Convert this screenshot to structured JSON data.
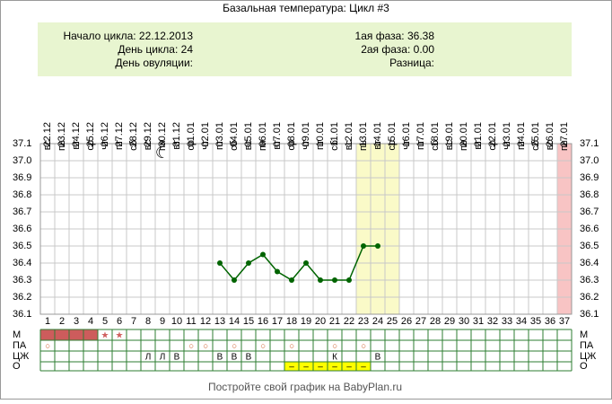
{
  "chart_data": {
    "type": "line",
    "title": "Базальная температура: Цикл #3",
    "info": {
      "left": [
        "Начало цикла: 22.12.2013",
        "День цикла: 24",
        "День овуляции:"
      ],
      "right": [
        "1ая фаза: 36.38",
        "2ая фаза: 0.00",
        "Разница:"
      ]
    },
    "categories": [
      "22.12",
      "23.12",
      "24.12",
      "25.12",
      "26.12",
      "27.12",
      "28.12",
      "29.12",
      "30.12",
      "31.12",
      "01.01",
      "02.01",
      "03.01",
      "04.01",
      "05.01",
      "06.01",
      "07.01",
      "08.01",
      "09.01",
      "10.01",
      "11.01",
      "12.01",
      "13.01",
      "14.01",
      "15.01",
      "16.01",
      "17.01",
      "18.01",
      "19.01",
      "20.01",
      "21.01",
      "22.01",
      "23.01",
      "24.01",
      "25.01",
      "26.01",
      "27.01"
    ],
    "weekdays": [
      "вс",
      "пн",
      "вт",
      "ср",
      "чт",
      "пт",
      "сб",
      "вс",
      "пн",
      "вт",
      "ср",
      "чт",
      "пт",
      "сб",
      "вс",
      "пн",
      "вт",
      "ср",
      "чт",
      "пт",
      "сб",
      "вс",
      "пн",
      "вт",
      "ср",
      "чт",
      "пт",
      "сб",
      "вс",
      "пн",
      "вт",
      "ср",
      "чт",
      "пт",
      "сб",
      "вс",
      "пн"
    ],
    "day_numbers": [
      1,
      2,
      3,
      4,
      5,
      6,
      7,
      8,
      9,
      10,
      11,
      12,
      13,
      14,
      15,
      16,
      17,
      18,
      19,
      20,
      21,
      22,
      23,
      24,
      25,
      26,
      27,
      28,
      29,
      30,
      31,
      32,
      33,
      34,
      35,
      36,
      37
    ],
    "values": [
      null,
      null,
      null,
      null,
      null,
      null,
      null,
      null,
      null,
      null,
      null,
      null,
      36.4,
      36.3,
      36.4,
      36.45,
      36.35,
      36.3,
      36.4,
      36.3,
      36.3,
      36.3,
      36.5,
      36.5,
      null,
      null,
      null,
      null,
      null,
      null,
      null,
      null,
      null,
      null,
      null,
      null,
      null
    ],
    "color": "#006400",
    "ylim": [
      36.1,
      37.1
    ],
    "yticks": [
      36.1,
      36.2,
      36.3,
      36.4,
      36.5,
      36.6,
      36.7,
      36.8,
      36.9,
      {
        "value": 37,
        "label": "37.0"
      },
      37.1
    ],
    "grid": true,
    "bands": [
      {
        "days": [
          23,
          24,
          25
        ],
        "color": "#fafac8"
      },
      {
        "days": [
          37
        ],
        "color": "#f8c4c4"
      }
    ],
    "rows": [
      {
        "label": "М",
        "mark_color": "#d06060",
        "fill_color": "#cd5c5c",
        "filled_days": [
          1,
          2,
          3,
          4
        ],
        "marks": [
          null,
          null,
          null,
          null,
          "★",
          "★",
          null,
          null,
          null,
          null,
          null,
          null,
          null,
          null,
          null,
          null,
          null,
          null,
          null,
          null,
          null,
          null,
          null,
          null,
          null,
          null,
          null,
          null,
          null,
          null,
          null,
          null,
          null,
          null,
          null,
          null,
          null
        ]
      },
      {
        "label": "ПА",
        "mark_color": "#d06030",
        "marks": [
          "○",
          null,
          null,
          null,
          null,
          null,
          null,
          null,
          null,
          null,
          "○",
          "○",
          null,
          "○",
          null,
          "○",
          null,
          "○",
          null,
          null,
          "○",
          null,
          "○",
          null,
          null,
          null,
          null,
          null,
          null,
          null,
          null,
          null,
          null,
          null,
          null,
          null,
          null
        ]
      },
      {
        "label": "ЦЖ",
        "mark_color": "#000000",
        "marks": [
          null,
          null,
          null,
          null,
          null,
          null,
          null,
          "Л",
          "Л",
          "В",
          null,
          null,
          "В",
          "В",
          "В",
          null,
          null,
          null,
          null,
          null,
          "К",
          null,
          null,
          "В",
          null,
          null,
          null,
          null,
          null,
          null,
          null,
          null,
          null,
          null,
          null,
          null,
          null
        ]
      },
      {
        "label": "О",
        "mark_color": "#000000",
        "fill_color": "#ffff00",
        "filled_days": [
          18,
          19,
          20,
          21,
          22,
          23
        ],
        "marks": [
          null,
          null,
          null,
          null,
          null,
          null,
          null,
          null,
          null,
          null,
          null,
          null,
          null,
          null,
          null,
          null,
          null,
          "–",
          "–",
          "–",
          "–",
          "–",
          "–",
          null,
          null,
          null,
          null,
          null,
          null,
          null,
          null,
          null,
          null,
          null,
          null,
          null,
          null
        ]
      }
    ],
    "footer": "Постройте свой график на BabyPlan.ru"
  }
}
